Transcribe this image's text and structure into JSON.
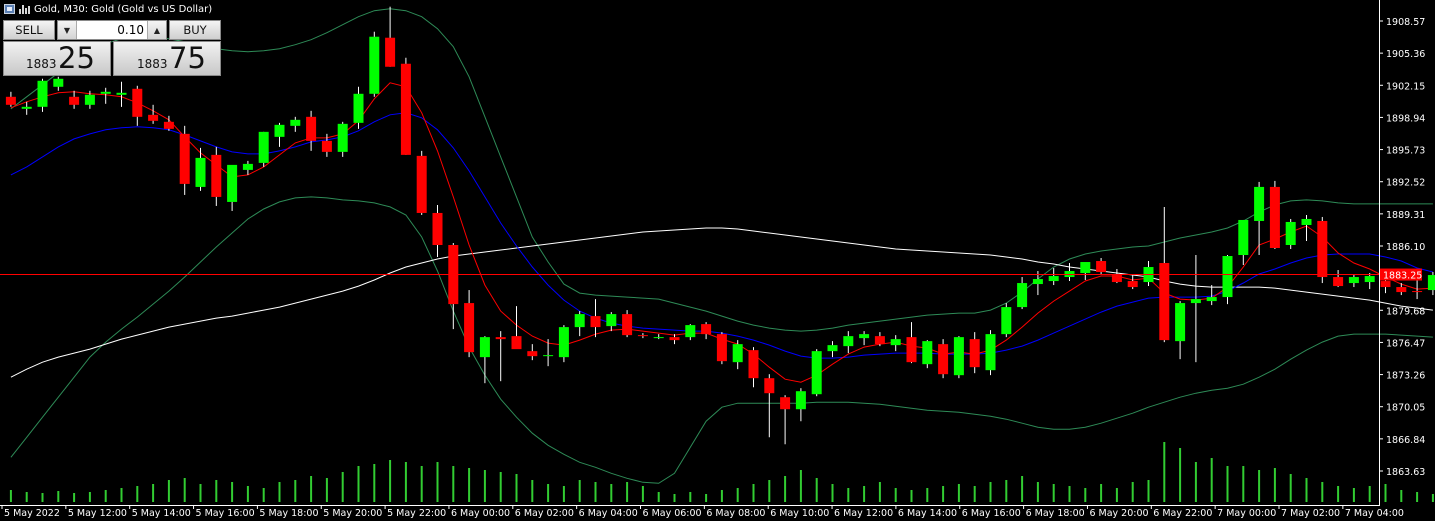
{
  "title": "Gold, M30:  Gold (Gold vs US Dollar)",
  "trade_panel": {
    "sell_label": "SELL",
    "buy_label": "BUY",
    "lot_value": "0.10",
    "sell_price_prefix": "1883",
    "sell_price_big": "25",
    "buy_price_prefix": "1883",
    "buy_price_big": "75"
  },
  "current_price_label": "1883.25",
  "colors": {
    "background": "#000000",
    "bull": "#00ff00",
    "bear": "#ff0000",
    "axis_text": "#ffffff",
    "grid": "#000000",
    "volume": "#32cd32",
    "ma_fast": "#ff0000",
    "ma_mid": "#0000ff",
    "ma_slow": "#ffffff",
    "bands": "#2e8b57"
  },
  "chart_data": {
    "type": "candlestick",
    "symbol": "Gold",
    "timeframe": "M30",
    "ylim": [
      1861.5,
      1910.5
    ],
    "y_ticks": [
      "1908.57",
      "1905.36",
      "1902.15",
      "1898.94",
      "1895.73",
      "1892.52",
      "1889.31",
      "1886.10",
      "1879.68",
      "1876.47",
      "1873.26",
      "1870.05",
      "1866.84",
      "1863.63"
    ],
    "x_ticks": [
      "5 May 2022",
      "5 May 12:00",
      "5 May 14:00",
      "5 May 16:00",
      "5 May 18:00",
      "5 May 20:00",
      "5 May 22:00",
      "6 May 00:00",
      "6 May 02:00",
      "6 May 04:00",
      "6 May 06:00",
      "6 May 08:00",
      "6 May 10:00",
      "6 May 12:00",
      "6 May 14:00",
      "6 May 16:00",
      "6 May 18:00",
      "6 May 20:00",
      "6 May 22:00",
      "7 May 00:00",
      "7 May 02:00",
      "7 May 04:00"
    ],
    "current_price": 1883.25,
    "candles": [
      [
        1901.0,
        1901.5,
        1900.0,
        1900.2
      ],
      [
        1899.8,
        1900.5,
        1899.2,
        1900.0
      ],
      [
        1900.0,
        1902.8,
        1899.5,
        1902.6
      ],
      [
        1902.0,
        1903.0,
        1901.6,
        1902.8
      ],
      [
        1901.0,
        1901.6,
        1899.8,
        1900.2
      ],
      [
        1900.2,
        1901.6,
        1899.8,
        1901.2
      ],
      [
        1901.3,
        1901.9,
        1900.3,
        1901.5
      ],
      [
        1901.2,
        1902.5,
        1900.0,
        1901.4
      ],
      [
        1901.8,
        1902.1,
        1898.1,
        1899.0
      ],
      [
        1899.2,
        1900.2,
        1898.3,
        1898.6
      ],
      [
        1898.5,
        1899.1,
        1897.6,
        1897.8
      ],
      [
        1897.3,
        1898.1,
        1891.2,
        1892.3
      ],
      [
        1892.0,
        1895.9,
        1891.6,
        1894.9
      ],
      [
        1895.2,
        1896.0,
        1890.1,
        1891.0
      ],
      [
        1890.5,
        1894.0,
        1889.6,
        1894.2
      ],
      [
        1893.7,
        1894.6,
        1893.2,
        1894.3
      ],
      [
        1894.4,
        1897.5,
        1894.0,
        1897.5
      ],
      [
        1897.0,
        1898.4,
        1896.0,
        1898.2
      ],
      [
        1898.1,
        1899.0,
        1897.5,
        1898.7
      ],
      [
        1899.0,
        1899.6,
        1895.6,
        1896.6
      ],
      [
        1896.6,
        1897.3,
        1895.0,
        1895.5
      ],
      [
        1895.5,
        1898.5,
        1895.0,
        1898.3
      ],
      [
        1898.4,
        1902.0,
        1897.8,
        1901.3
      ],
      [
        1901.3,
        1907.5,
        1901.0,
        1907.0
      ],
      [
        1906.9,
        1910.0,
        1904.0,
        1904.0
      ],
      [
        1904.3,
        1904.9,
        1895.2,
        1895.2
      ],
      [
        1895.1,
        1895.6,
        1889.2,
        1889.4
      ],
      [
        1889.4,
        1890.2,
        1885.0,
        1886.2
      ],
      [
        1886.2,
        1886.4,
        1877.8,
        1880.3
      ],
      [
        1880.4,
        1881.7,
        1875.0,
        1875.5
      ],
      [
        1875.0,
        1877.1,
        1872.4,
        1877.0
      ],
      [
        1877.0,
        1877.6,
        1872.6,
        1876.8
      ],
      [
        1877.1,
        1880.1,
        1876.2,
        1875.8
      ],
      [
        1875.6,
        1876.3,
        1874.7,
        1875.1
      ],
      [
        1875.1,
        1876.8,
        1874.1,
        1875.2
      ],
      [
        1875.0,
        1878.2,
        1874.5,
        1878.0
      ],
      [
        1878.0,
        1879.6,
        1877.1,
        1879.3
      ],
      [
        1879.1,
        1880.8,
        1877.0,
        1878.0
      ],
      [
        1878.1,
        1879.5,
        1877.6,
        1879.3
      ],
      [
        1879.3,
        1879.7,
        1877.0,
        1877.2
      ],
      [
        1877.2,
        1877.4,
        1876.9,
        1877.1
      ],
      [
        1877.0,
        1877.3,
        1876.8,
        1877.0
      ],
      [
        1877.0,
        1877.3,
        1876.3,
        1876.7
      ],
      [
        1877.0,
        1878.3,
        1876.7,
        1878.2
      ],
      [
        1878.3,
        1878.5,
        1876.8,
        1877.3
      ],
      [
        1877.3,
        1877.5,
        1874.3,
        1874.6
      ],
      [
        1874.5,
        1876.7,
        1873.8,
        1876.3
      ],
      [
        1875.7,
        1876.0,
        1872.0,
        1872.9
      ],
      [
        1872.9,
        1873.3,
        1867.0,
        1871.4
      ],
      [
        1871.0,
        1871.2,
        1866.3,
        1869.8
      ],
      [
        1869.8,
        1871.9,
        1868.6,
        1871.6
      ],
      [
        1871.3,
        1875.8,
        1871.1,
        1875.6
      ],
      [
        1875.6,
        1876.6,
        1875.0,
        1876.2
      ],
      [
        1876.1,
        1877.6,
        1875.4,
        1877.1
      ],
      [
        1876.9,
        1877.6,
        1876.2,
        1877.3
      ],
      [
        1877.1,
        1877.5,
        1876.1,
        1876.3
      ],
      [
        1876.2,
        1877.2,
        1875.6,
        1876.8
      ],
      [
        1877.0,
        1878.5,
        1874.4,
        1874.5
      ],
      [
        1874.3,
        1876.7,
        1873.9,
        1876.6
      ],
      [
        1876.3,
        1876.8,
        1872.9,
        1873.3
      ],
      [
        1873.2,
        1877.1,
        1872.9,
        1877.0
      ],
      [
        1876.8,
        1877.5,
        1873.4,
        1874.0
      ],
      [
        1873.7,
        1877.7,
        1873.2,
        1877.3
      ],
      [
        1877.3,
        1880.4,
        1877.0,
        1880.0
      ],
      [
        1880.0,
        1883.0,
        1879.8,
        1882.4
      ],
      [
        1882.3,
        1883.6,
        1881.2,
        1882.8
      ],
      [
        1882.6,
        1883.9,
        1882.2,
        1883.1
      ],
      [
        1883.0,
        1884.4,
        1882.6,
        1883.6
      ],
      [
        1883.4,
        1884.4,
        1882.7,
        1884.5
      ],
      [
        1884.6,
        1884.9,
        1883.2,
        1883.5
      ],
      [
        1883.2,
        1883.8,
        1882.4,
        1882.5
      ],
      [
        1882.6,
        1883.2,
        1881.8,
        1882.0
      ],
      [
        1882.5,
        1884.6,
        1882.1,
        1884.0
      ],
      [
        1884.4,
        1890.0,
        1876.5,
        1876.7
      ],
      [
        1876.6,
        1880.6,
        1874.8,
        1880.4
      ],
      [
        1880.4,
        1885.2,
        1874.5,
        1880.8
      ],
      [
        1880.6,
        1882.2,
        1880.2,
        1881.0
      ],
      [
        1881.0,
        1885.2,
        1880.3,
        1885.1
      ],
      [
        1885.2,
        1888.7,
        1884.2,
        1888.7
      ],
      [
        1888.6,
        1892.5,
        1885.2,
        1892.0
      ],
      [
        1892.0,
        1892.6,
        1885.8,
        1885.9
      ],
      [
        1886.2,
        1888.8,
        1885.8,
        1888.5
      ],
      [
        1888.2,
        1889.2,
        1886.6,
        1888.8
      ],
      [
        1888.6,
        1889.0,
        1882.4,
        1883.0
      ],
      [
        1883.0,
        1883.7,
        1882.0,
        1882.1
      ],
      [
        1882.4,
        1883.2,
        1882.0,
        1883.0
      ],
      [
        1882.5,
        1883.4,
        1881.8,
        1883.1
      ],
      [
        1882.6,
        1883.5,
        1881.4,
        1882.0
      ],
      [
        1882.0,
        1882.4,
        1881.2,
        1881.5
      ],
      [
        1881.6,
        1883.2,
        1880.8,
        1881.5
      ],
      [
        1881.7,
        1883.5,
        1881.2,
        1883.2
      ]
    ],
    "volume": [
      12,
      10,
      9,
      11,
      9,
      10,
      12,
      14,
      16,
      18,
      22,
      24,
      18,
      22,
      20,
      16,
      14,
      20,
      22,
      26,
      24,
      30,
      36,
      38,
      42,
      40,
      36,
      40,
      36,
      34,
      32,
      30,
      28,
      22,
      18,
      16,
      22,
      20,
      18,
      20,
      16,
      10,
      8,
      10,
      8,
      12,
      14,
      18,
      22,
      26,
      32,
      24,
      18,
      14,
      16,
      20,
      14,
      12,
      14,
      16,
      18,
      16,
      20,
      22,
      26,
      20,
      18,
      16,
      14,
      18,
      14,
      20,
      22,
      60,
      54,
      40,
      44,
      36,
      36,
      32,
      34,
      28,
      24,
      20,
      16,
      14,
      16,
      18,
      12,
      10,
      8
    ],
    "ma_fast": [
      1899.9,
      1900.5,
      1901.0,
      1901.4,
      1901.5,
      1901.3,
      1901.2,
      1901.0,
      1900.4,
      1899.6,
      1898.7,
      1897.0,
      1895.4,
      1894.2,
      1893.0,
      1893.2,
      1894.0,
      1895.2,
      1896.4,
      1896.9,
      1896.9,
      1897.3,
      1898.6,
      1900.8,
      1902.4,
      1902.0,
      1899.4,
      1895.6,
      1891.0,
      1886.2,
      1882.2,
      1879.6,
      1878.2,
      1877.1,
      1876.4,
      1876.2,
      1876.7,
      1877.3,
      1877.7,
      1877.8,
      1877.6,
      1877.4,
      1877.2,
      1877.4,
      1877.4,
      1876.8,
      1876.3,
      1875.3,
      1874.0,
      1872.8,
      1872.5,
      1873.2,
      1874.3,
      1875.3,
      1876.0,
      1876.3,
      1876.5,
      1876.1,
      1875.9,
      1875.3,
      1875.5,
      1875.3,
      1875.7,
      1876.7,
      1878.0,
      1879.4,
      1880.6,
      1881.6,
      1882.6,
      1883.1,
      1883.1,
      1882.7,
      1882.9,
      1881.4,
      1880.8,
      1880.7,
      1880.9,
      1882.0,
      1884.0,
      1886.2,
      1886.8,
      1887.5,
      1888.1,
      1887.0,
      1885.4,
      1884.4,
      1883.8,
      1883.0,
      1882.3,
      1881.8,
      1881.9
    ],
    "ma_mid": [
      1893.2,
      1894.0,
      1895.0,
      1896.0,
      1896.8,
      1897.3,
      1897.7,
      1897.9,
      1898.0,
      1897.9,
      1897.7,
      1897.2,
      1896.6,
      1896.0,
      1895.5,
      1895.3,
      1895.3,
      1895.6,
      1896.0,
      1896.5,
      1896.7,
      1897.0,
      1897.6,
      1898.5,
      1899.2,
      1899.4,
      1898.9,
      1897.7,
      1895.9,
      1893.6,
      1891.0,
      1888.4,
      1886.1,
      1884.0,
      1882.2,
      1880.7,
      1879.6,
      1878.9,
      1878.4,
      1878.1,
      1877.9,
      1877.8,
      1877.7,
      1877.6,
      1877.6,
      1877.4,
      1877.1,
      1876.7,
      1876.2,
      1875.6,
      1875.1,
      1874.9,
      1874.9,
      1875.0,
      1875.2,
      1875.3,
      1875.4,
      1875.4,
      1875.4,
      1875.3,
      1875.3,
      1875.3,
      1875.4,
      1875.7,
      1876.1,
      1876.7,
      1877.4,
      1878.1,
      1878.8,
      1879.5,
      1880.1,
      1880.5,
      1880.9,
      1881.0,
      1881.0,
      1881.0,
      1881.1,
      1881.6,
      1882.4,
      1883.3,
      1883.8,
      1884.4,
      1884.9,
      1885.2,
      1885.3,
      1885.3,
      1885.3,
      1885.0,
      1884.6,
      1883.9,
      1883.5
    ],
    "ma_slow": [
      1873.0,
      1873.8,
      1874.5,
      1875.0,
      1875.4,
      1875.8,
      1876.3,
      1876.8,
      1877.2,
      1877.6,
      1878.0,
      1878.3,
      1878.6,
      1878.9,
      1879.1,
      1879.4,
      1879.7,
      1880.0,
      1880.4,
      1880.8,
      1881.2,
      1881.6,
      1882.1,
      1882.7,
      1883.4,
      1884.0,
      1884.4,
      1884.8,
      1885.1,
      1885.3,
      1885.5,
      1885.7,
      1885.9,
      1886.1,
      1886.3,
      1886.5,
      1886.7,
      1886.9,
      1887.1,
      1887.3,
      1887.5,
      1887.6,
      1887.7,
      1887.8,
      1887.9,
      1887.9,
      1887.8,
      1887.6,
      1887.4,
      1887.2,
      1887.0,
      1886.8,
      1886.6,
      1886.4,
      1886.2,
      1886.0,
      1885.8,
      1885.7,
      1885.6,
      1885.5,
      1885.4,
      1885.3,
      1885.2,
      1885.0,
      1884.8,
      1884.5,
      1884.3,
      1884.0,
      1883.8,
      1883.6,
      1883.4,
      1883.2,
      1883.0,
      1882.6,
      1882.3,
      1882.1,
      1882.0,
      1882.0,
      1882.0,
      1882.0,
      1881.9,
      1881.7,
      1881.5,
      1881.3,
      1881.1,
      1880.9,
      1880.7,
      1880.4,
      1880.1,
      1879.9,
      1879.7
    ],
    "band_upper": [
      1899.8,
      1901.0,
      1902.2,
      1903.4,
      1904.6,
      1905.6,
      1906.3,
      1906.8,
      1907.0,
      1907.0,
      1906.8,
      1906.5,
      1906.1,
      1905.8,
      1905.6,
      1905.5,
      1905.6,
      1905.8,
      1906.2,
      1906.7,
      1907.4,
      1908.2,
      1909.0,
      1909.6,
      1909.8,
      1909.6,
      1909.0,
      1907.8,
      1906.0,
      1903.0,
      1899.0,
      1895.0,
      1891.0,
      1887.0,
      1884.5,
      1882.3,
      1881.4,
      1881.2,
      1881.1,
      1881.0,
      1880.9,
      1880.8,
      1880.4,
      1880.0,
      1879.6,
      1879.1,
      1878.6,
      1878.2,
      1877.9,
      1877.7,
      1877.6,
      1877.7,
      1877.9,
      1878.2,
      1878.4,
      1878.6,
      1878.8,
      1879.0,
      1879.2,
      1879.3,
      1879.4,
      1879.4,
      1879.7,
      1880.4,
      1881.5,
      1882.8,
      1884.0,
      1884.8,
      1885.3,
      1885.6,
      1885.8,
      1886.0,
      1886.1,
      1886.5,
      1886.9,
      1887.2,
      1887.5,
      1887.9,
      1888.6,
      1889.5,
      1890.2,
      1890.6,
      1890.7,
      1890.6,
      1890.4,
      1890.3,
      1890.3,
      1890.3,
      1890.3,
      1890.3,
      1890.3
    ],
    "band_lower": [
      1865.0,
      1867.0,
      1869.0,
      1871.0,
      1873.0,
      1875.0,
      1876.5,
      1877.8,
      1879.0,
      1880.3,
      1881.6,
      1883.0,
      1884.5,
      1886.0,
      1887.4,
      1888.8,
      1889.8,
      1890.5,
      1890.9,
      1891.0,
      1890.9,
      1890.7,
      1890.6,
      1890.4,
      1890.0,
      1889.2,
      1887.0,
      1883.6,
      1879.6,
      1876.0,
      1873.2,
      1870.8,
      1869.0,
      1867.4,
      1866.2,
      1865.3,
      1864.5,
      1864.0,
      1863.4,
      1862.9,
      1862.5,
      1862.4,
      1863.4,
      1866.0,
      1868.6,
      1870.0,
      1870.4,
      1870.4,
      1870.4,
      1870.4,
      1870.4,
      1870.5,
      1870.5,
      1870.5,
      1870.4,
      1870.3,
      1870.1,
      1869.9,
      1869.7,
      1869.6,
      1869.5,
      1869.3,
      1869.1,
      1868.8,
      1868.4,
      1868.0,
      1867.8,
      1867.8,
      1868.0,
      1868.4,
      1868.9,
      1869.4,
      1870.0,
      1870.5,
      1871.0,
      1871.4,
      1871.7,
      1871.9,
      1872.3,
      1873.0,
      1873.8,
      1874.8,
      1875.7,
      1876.5,
      1877.1,
      1877.3,
      1877.3,
      1877.3,
      1877.2,
      1877.1,
      1877.0
    ]
  }
}
